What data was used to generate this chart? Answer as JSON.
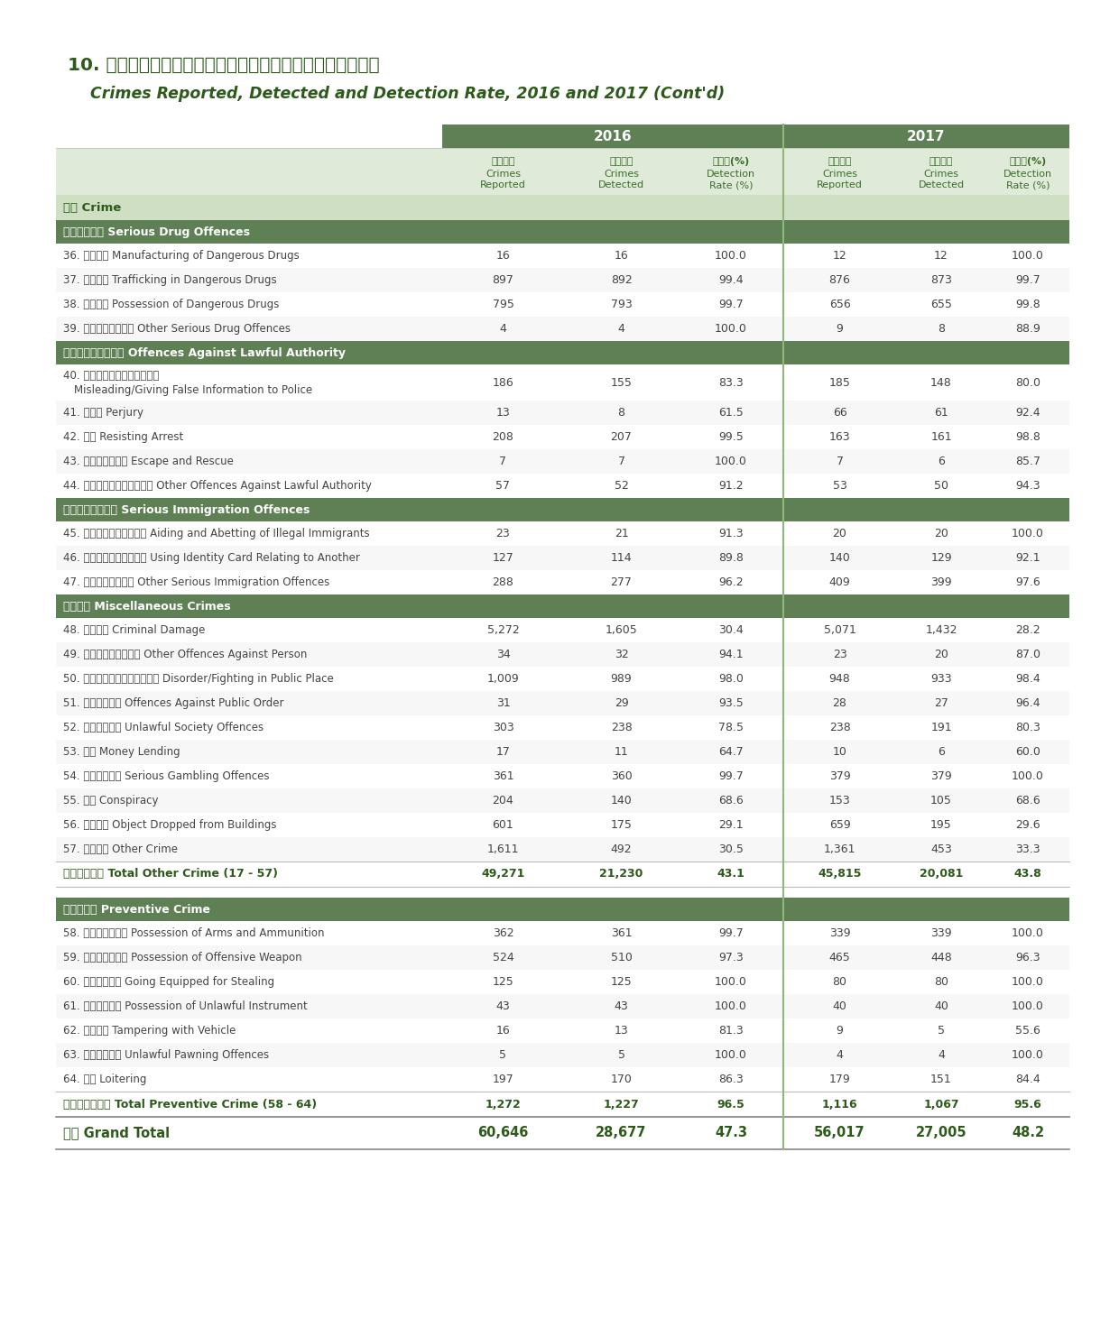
{
  "title_chinese": "10. 二零一六年及二零一七年報案與破案數字及破案率（續）",
  "title_english": "Crimes Reported, Detected and Detection Rate, 2016 and 2017 (Cont'd)",
  "rows": [
    {
      "label": "36. 製煉毒品 Manufacturing of Dangerous Drugs",
      "v2016": [
        16,
        16,
        100.0
      ],
      "v2017": [
        12,
        12,
        100.0
      ],
      "type": "data"
    },
    {
      "label": "37. 販運毒品 Trafficking in Dangerous Drugs",
      "v2016": [
        897,
        892,
        99.4
      ],
      "v2017": [
        876,
        873,
        99.7
      ],
      "type": "data"
    },
    {
      "label": "38. 藏有毒品 Possession of Dangerous Drugs",
      "v2016": [
        795,
        793,
        99.7
      ],
      "v2017": [
        656,
        655,
        99.8
      ],
      "type": "data"
    },
    {
      "label": "39. 其他嚴重毒品罪行 Other Serious Drug Offences",
      "v2016": [
        4,
        4,
        100.0
      ],
      "v2017": [
        9,
        8,
        88.9
      ],
      "type": "data"
    },
    {
      "label": "違背合法權力的罪行 Offences Against Lawful Authority",
      "v2016": [
        null,
        null,
        null
      ],
      "v2017": [
        null,
        null,
        null
      ],
      "type": "section"
    },
    {
      "label": "40. 誤導／提供虛假消息予警方\nMisleading/Giving False Information to Police",
      "v2016": [
        186,
        155,
        83.3
      ],
      "v2017": [
        185,
        148,
        80.0
      ],
      "type": "data2"
    },
    {
      "label": "41. 發假讓 Perjury",
      "v2016": [
        13,
        8,
        61.5
      ],
      "v2017": [
        66,
        61,
        92.4
      ],
      "type": "data"
    },
    {
      "label": "42. 拒捕 Resisting Arrest",
      "v2016": [
        208,
        207,
        99.5
      ],
      "v2017": [
        163,
        161,
        98.8
      ],
      "type": "data"
    },
    {
      "label": "43. 逃走及非法劫回 Escape and Rescue",
      "v2016": [
        7,
        7,
        100.0
      ],
      "v2017": [
        7,
        6,
        85.7
      ],
      "type": "data"
    },
    {
      "label": "44. 其他違背合法權力的罪行 Other Offences Against Lawful Authority",
      "v2016": [
        57,
        52,
        91.2
      ],
      "v2017": [
        53,
        50,
        94.3
      ],
      "type": "data"
    },
    {
      "label": "嚴重非法入境罪行 Serious Immigration Offences",
      "v2016": [
        null,
        null,
        null
      ],
      "v2017": [
        null,
        null,
        null
      ],
      "type": "section"
    },
    {
      "label": "45. 協助及教唠非法入境者 Aiding and Abetting of Illegal Immigrants",
      "v2016": [
        23,
        21,
        91.3
      ],
      "v2017": [
        20,
        20,
        100.0
      ],
      "type": "data"
    },
    {
      "label": "46. 使用屬於他人的身份證 Using Identity Card Relating to Another",
      "v2016": [
        127,
        114,
        89.8
      ],
      "v2017": [
        140,
        129,
        92.1
      ],
      "type": "data"
    },
    {
      "label": "47. 其他嚴重入境罪行 Other Serious Immigration Offences",
      "v2016": [
        288,
        277,
        96.2
      ],
      "v2017": [
        409,
        399,
        97.6
      ],
      "type": "data"
    },
    {
      "label": "雜項罪案 Miscellaneous Crimes",
      "v2016": [
        null,
        null,
        null
      ],
      "v2017": [
        null,
        null,
        null
      ],
      "type": "section"
    },
    {
      "label": "48. 刑事毀壞 Criminal Damage",
      "v2016": [
        5272,
        1605,
        30.4
      ],
      "v2017": [
        5071,
        1432,
        28.2
      ],
      "type": "data"
    },
    {
      "label": "49. 其他侵犯人身的罪行 Other Offences Against Person",
      "v2016": [
        34,
        32,
        94.1
      ],
      "v2017": [
        23,
        20,
        87.0
      ],
      "type": "data"
    },
    {
      "label": "50. 在公眾地方行為不檢／打鬥 Disorder/Fighting in Public Place",
      "v2016": [
        1009,
        989,
        98.0
      ],
      "v2017": [
        948,
        933,
        98.4
      ],
      "type": "data"
    },
    {
      "label": "51. 妨礙公安罪行 Offences Against Public Order",
      "v2016": [
        31,
        29,
        93.5
      ],
      "v2017": [
        28,
        27,
        96.4
      ],
      "type": "data"
    },
    {
      "label": "52. 非法會社罪行 Unlawful Society Offences",
      "v2016": [
        303,
        238,
        78.5
      ],
      "v2017": [
        238,
        191,
        80.3
      ],
      "type": "data"
    },
    {
      "label": "53. 借貸 Money Lending",
      "v2016": [
        17,
        11,
        64.7
      ],
      "v2017": [
        10,
        6,
        60.0
      ],
      "type": "data"
    },
    {
      "label": "54. 嚴重誺博罪行 Serious Gambling Offences",
      "v2016": [
        361,
        360,
        99.7
      ],
      "v2017": [
        379,
        379,
        100.0
      ],
      "type": "data"
    },
    {
      "label": "55. 串謀 Conspiracy",
      "v2016": [
        204,
        140,
        68.6
      ],
      "v2017": [
        153,
        105,
        68.6
      ],
      "type": "data"
    },
    {
      "label": "56. 高空墓物 Object Dropped from Buildings",
      "v2016": [
        601,
        175,
        29.1
      ],
      "v2017": [
        659,
        195,
        29.6
      ],
      "type": "data"
    },
    {
      "label": "57. 其他罪案 Other Crime",
      "v2016": [
        1611,
        492,
        30.5
      ],
      "v2017": [
        1361,
        453,
        33.3
      ],
      "type": "data"
    },
    {
      "label": "其他罪案總計 Total Other Crime (17 - 57)",
      "v2016": [
        49271,
        21230,
        43.1
      ],
      "v2017": [
        45815,
        20081,
        43.8
      ],
      "type": "subtotal"
    },
    {
      "label": "防範性罪案 Preventive Crime",
      "v2016": [
        null,
        null,
        null
      ],
      "v2017": [
        null,
        null,
        null
      ],
      "type": "section_space"
    },
    {
      "label": "58. 藏有槍械及彈藥 Possession of Arms and Ammunition",
      "v2016": [
        362,
        361,
        99.7
      ],
      "v2017": [
        339,
        339,
        100.0
      ],
      "type": "data"
    },
    {
      "label": "59. 藏有攻擊性武器 Possession of Offensive Weapon",
      "v2016": [
        524,
        510,
        97.3
      ],
      "v2017": [
        465,
        448,
        96.3
      ],
      "type": "data"
    },
    {
      "label": "60. 身懷盜竊工具 Going Equipped for Stealing",
      "v2016": [
        125,
        125,
        100.0
      ],
      "v2017": [
        80,
        80,
        100.0
      ],
      "type": "data"
    },
    {
      "label": "61. 藏有非法工具 Possession of Unlawful Instrument",
      "v2016": [
        43,
        43,
        100.0
      ],
      "v2017": [
        40,
        40,
        100.0
      ],
      "type": "data"
    },
    {
      "label": "62. 干擾車輋 Tampering with Vehicle",
      "v2016": [
        16,
        13,
        81.3
      ],
      "v2017": [
        9,
        5,
        55.6
      ],
      "type": "data"
    },
    {
      "label": "63. 非法典當罪行 Unlawful Pawning Offences",
      "v2016": [
        5,
        5,
        100.0
      ],
      "v2017": [
        4,
        4,
        100.0
      ],
      "type": "data"
    },
    {
      "label": "64. 游蕩 Loitering",
      "v2016": [
        197,
        170,
        86.3
      ],
      "v2017": [
        179,
        151,
        84.4
      ],
      "type": "data"
    },
    {
      "label": "防範性罪案總計 Total Preventive Crime (58 - 64)",
      "v2016": [
        1272,
        1227,
        96.5
      ],
      "v2017": [
        1116,
        1067,
        95.6
      ],
      "type": "subtotal"
    },
    {
      "label": "合計 Grand Total",
      "v2016": [
        60646,
        28677,
        47.3
      ],
      "v2017": [
        56017,
        27005,
        48.2
      ],
      "type": "grand_total"
    }
  ],
  "col_headers_line1_zh": [
    "報案數字",
    "破案數字",
    "破案率(%)",
    "  報案數字",
    "破案數字",
    "破案率(%)"
  ],
  "col_headers_line2": [
    "Crimes",
    "Crimes",
    "Detection",
    "Crimes",
    "Crimes",
    "Detection"
  ],
  "col_headers_line3": [
    "Reported",
    "Detected",
    "Rate (%)",
    "Reported",
    "Detected",
    "Rate (%)"
  ],
  "crime_label_zh": "罪案",
  "crime_label_en": "Crime",
  "colors": {
    "section_bg": "#5f7f55",
    "section_text": "#ffffff",
    "header_bg": "#5f7f55",
    "header_text": "#ffffff",
    "year_divider": "#8cb87a",
    "subtotal_text": "#2d5a1b",
    "data_text": "#444444",
    "title_color": "#2d5a1b",
    "col_header_bg": "#e0ead8",
    "col_header_text": "#3a6e28",
    "row_odd_bg": "#f7f7f7",
    "row_even_bg": "#ffffff",
    "light_green_header": "#cfdfc4",
    "border_color": "#bbbbbb",
    "grand_total_line": "#888888"
  }
}
